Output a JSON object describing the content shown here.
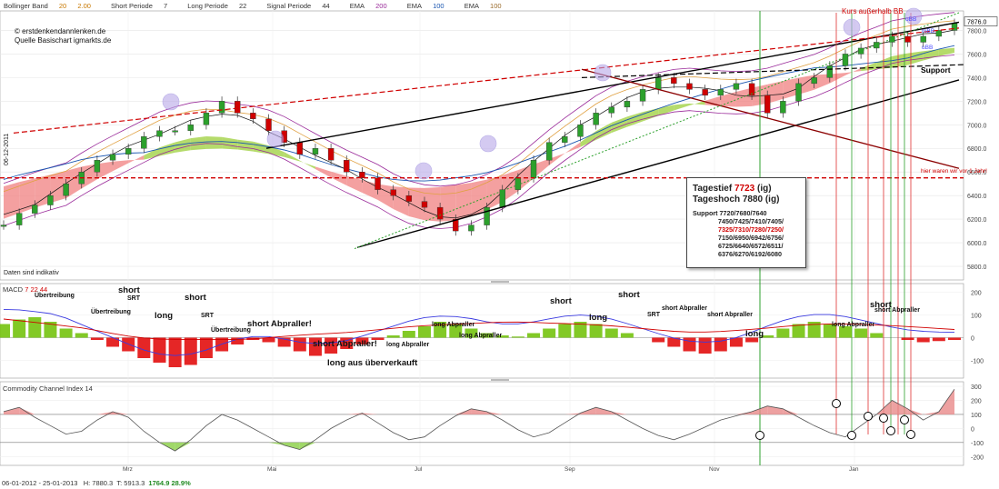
{
  "header": {
    "bollinger": "Bollinger Band",
    "boll_a": "20",
    "boll_b": "2.00",
    "short_periode": "Short Periode",
    "short_val": "7",
    "long_periode": "Long Periode",
    "long_val": "22",
    "signal_periode": "Signal Periode",
    "signal_val": "44",
    "ema": "EMA",
    "ema1": "200",
    "ema2": "100",
    "ema3": "100"
  },
  "copyright": {
    "line1": "© erstdenkendannlenken.de",
    "line2": "Quelle Basischart igmarkts.de"
  },
  "vertical_date": "06-12-2011",
  "daten_note": "Daten sind indikativ",
  "annotations": {
    "kurs_ausserhalb": "Kurs außerhalb BB",
    "support": "Support",
    "vor_jahr": "hier waren wir vor 1 Jahr!",
    "obb": "oBB",
    "mbb": "mBB",
    "ubb": "uBB"
  },
  "infobox": {
    "tagestief_label": "Tagestief",
    "tagestief_val": "7723",
    "tagestief_suffix": "(ig)",
    "tageshoch": "Tageshoch 7880 (ig)",
    "support_label": "Support 7720/7680/7640",
    "line2": "7450/7425/7410/7405/",
    "line3": "7325/7310/7280/7250/",
    "line4": "7150/6950/6942/6756/",
    "line5": "6725/6640/6572/6511/",
    "line6": "6376/6270/6192/6080"
  },
  "macd": {
    "title": "MACD",
    "p1": "7",
    "p2": "22",
    "p3": "44",
    "labels": [
      {
        "t": "short",
        "x": 130,
        "y": 322,
        "big": true
      },
      {
        "t": "SRT",
        "x": 140,
        "y": 333,
        "big": false
      },
      {
        "t": "Übertreibung",
        "x": 38,
        "y": 330,
        "big": false
      },
      {
        "t": "Übertreibung",
        "x": 100,
        "y": 348,
        "big": false
      },
      {
        "t": "long",
        "x": 170,
        "y": 350,
        "big": true
      },
      {
        "t": "short",
        "x": 203,
        "y": 330,
        "big": true
      },
      {
        "t": "SRT",
        "x": 221,
        "y": 352,
        "big": false
      },
      {
        "t": "short Abpraller!",
        "x": 272,
        "y": 359,
        "big": true
      },
      {
        "t": "Übertreibung",
        "x": 232,
        "y": 368,
        "big": false
      },
      {
        "t": "short Abpraller!",
        "x": 344,
        "y": 381,
        "big": true
      },
      {
        "t": "long aus überverkauft",
        "x": 360,
        "y": 402,
        "big": true
      },
      {
        "t": "long Abpraller",
        "x": 425,
        "y": 384,
        "big": false
      },
      {
        "t": "long Abpraller",
        "x": 475,
        "y": 362,
        "big": false
      },
      {
        "t": "long Abpraller",
        "x": 505,
        "y": 374,
        "big": false
      },
      {
        "t": "short",
        "x": 605,
        "y": 334,
        "big": true
      },
      {
        "t": "long",
        "x": 648,
        "y": 352,
        "big": true
      },
      {
        "t": "short",
        "x": 680,
        "y": 327,
        "big": true
      },
      {
        "t": "SRT",
        "x": 712,
        "y": 351,
        "big": false
      },
      {
        "t": "short Abpraller",
        "x": 728,
        "y": 344,
        "big": false
      },
      {
        "t": "short Abpraller",
        "x": 778,
        "y": 351,
        "big": false
      },
      {
        "t": "long",
        "x": 820,
        "y": 370,
        "big": true
      },
      {
        "t": "long Abpraller",
        "x": 915,
        "y": 362,
        "big": false
      },
      {
        "t": "short",
        "x": 957,
        "y": 338,
        "big": true
      },
      {
        "t": "short Abpraller",
        "x": 962,
        "y": 346,
        "big": false
      }
    ]
  },
  "cci": {
    "title": "Commodity Channel Index",
    "period": "14"
  },
  "footer": {
    "date_from": "06-01-2012",
    "date_to": "25-01-2013",
    "h": "H: 7880.3",
    "t": "T: 5913.3",
    "diff": "1764.9",
    "pct": "28.9%"
  },
  "chart_data": [
    {
      "type": "candlestick",
      "xlabel": "",
      "ylabel": "",
      "x_ticks": [
        "Mrz",
        "Mai",
        "Jul",
        "Sep",
        "Nov",
        "Jan"
      ],
      "y_ticks": [
        5800,
        6000,
        6200,
        6400,
        6600,
        6800,
        7000,
        7200,
        7400,
        7600,
        7800
      ],
      "last_value": 7876.0,
      "ylim": [
        5700,
        7950
      ],
      "series": [
        {
          "name": "Kurs",
          "values": [
            6150,
            6250,
            6320,
            6400,
            6500,
            6600,
            6700,
            6750,
            6800,
            6900,
            6950,
            6950,
            7000,
            7100,
            7200,
            7100,
            7050,
            6950,
            6850,
            6750,
            6800,
            6700,
            6600,
            6550,
            6450,
            6400,
            6350,
            6300,
            6200,
            6100,
            6150,
            6300,
            6450,
            6550,
            6700,
            6850,
            6900,
            7000,
            7100,
            7150,
            7200,
            7300,
            7400,
            7350,
            7300,
            7250,
            7300,
            7350,
            7250,
            7100,
            7200,
            7350,
            7400,
            7500,
            7600,
            7650,
            7700,
            7750,
            7700,
            7750,
            7800,
            7860
          ]
        }
      ]
    },
    {
      "type": "bar",
      "title": "MACD",
      "y_ticks": [
        -100,
        0,
        100,
        200
      ],
      "series": [
        {
          "name": "Histogramm",
          "values": [
            60,
            80,
            90,
            70,
            40,
            20,
            -10,
            -40,
            -60,
            -90,
            -110,
            -130,
            -120,
            -90,
            -60,
            -30,
            -10,
            -20,
            -40,
            -60,
            -80,
            -70,
            -50,
            -30,
            -10,
            10,
            30,
            50,
            70,
            60,
            40,
            20,
            10,
            5,
            20,
            40,
            60,
            70,
            60,
            40,
            20,
            0,
            -20,
            -40,
            -60,
            -70,
            -60,
            -40,
            -20,
            10,
            40,
            60,
            70,
            60,
            50,
            40,
            20,
            0,
            -10,
            -20,
            -15,
            -10
          ]
        }
      ]
    },
    {
      "type": "area",
      "title": "Commodity Channel Index",
      "y_ticks": [
        -200,
        -100,
        0,
        100,
        200,
        300
      ],
      "series": [
        {
          "name": "CCI",
          "values": [
            120,
            150,
            80,
            20,
            -40,
            -20,
            60,
            120,
            80,
            -20,
            -100,
            -160,
            -80,
            20,
            100,
            60,
            0,
            -60,
            -120,
            -150,
            -80,
            0,
            60,
            110,
            40,
            -30,
            -80,
            -60,
            20,
            90,
            140,
            120,
            60,
            -10,
            -60,
            -30,
            40,
            110,
            150,
            120,
            60,
            0,
            -50,
            -80,
            -40,
            10,
            60,
            90,
            120,
            160,
            140,
            80,
            20,
            -30,
            -60,
            20,
            100,
            200,
            140,
            60,
            120,
            280
          ]
        }
      ]
    }
  ]
}
